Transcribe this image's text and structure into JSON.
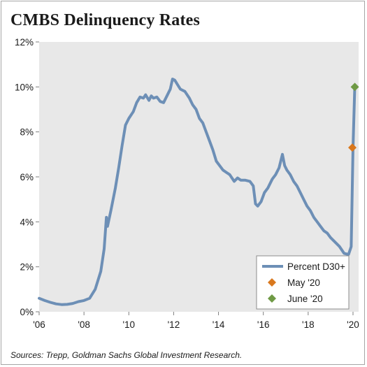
{
  "title": "CMBS Delinquency Rates",
  "source": "Sources: Trepp, Goldman Sachs Global Investment Research.",
  "colors": {
    "plot_background": "#e8e8e8",
    "line": "#6d8fb6",
    "may_marker": "#d9781e",
    "june_marker": "#6f9a45"
  },
  "chart_data": {
    "type": "line",
    "title": "CMBS Delinquency Rates",
    "xlabel": "",
    "ylabel": "",
    "xlim": [
      2006.0,
      2020.25
    ],
    "ylim": [
      0,
      12
    ],
    "x_ticks": [
      {
        "value": 2006,
        "label": "'06"
      },
      {
        "value": 2008,
        "label": "'08"
      },
      {
        "value": 2010,
        "label": "'10"
      },
      {
        "value": 2012,
        "label": "'12"
      },
      {
        "value": 2014,
        "label": "'14"
      },
      {
        "value": 2016,
        "label": "'16"
      },
      {
        "value": 2018,
        "label": "'18"
      },
      {
        "value": 2020,
        "label": "'20"
      }
    ],
    "y_ticks": [
      {
        "value": 0,
        "label": "0%"
      },
      {
        "value": 2,
        "label": "2%"
      },
      {
        "value": 4,
        "label": "4%"
      },
      {
        "value": 6,
        "label": "6%"
      },
      {
        "value": 8,
        "label": "8%"
      },
      {
        "value": 10,
        "label": "10%"
      },
      {
        "value": 12,
        "label": "12%"
      }
    ],
    "grid": false,
    "legend_position": "bottom-right",
    "series": [
      {
        "name": "Percent D30+",
        "kind": "line",
        "points": [
          [
            2006.0,
            0.6
          ],
          [
            2006.25,
            0.5
          ],
          [
            2006.5,
            0.42
          ],
          [
            2006.75,
            0.35
          ],
          [
            2007.0,
            0.32
          ],
          [
            2007.25,
            0.33
          ],
          [
            2007.5,
            0.37
          ],
          [
            2007.75,
            0.45
          ],
          [
            2008.0,
            0.5
          ],
          [
            2008.25,
            0.6
          ],
          [
            2008.5,
            1.0
          ],
          [
            2008.75,
            1.8
          ],
          [
            2008.9,
            2.8
          ],
          [
            2009.0,
            4.2
          ],
          [
            2009.05,
            3.8
          ],
          [
            2009.2,
            4.5
          ],
          [
            2009.4,
            5.5
          ],
          [
            2009.55,
            6.4
          ],
          [
            2009.7,
            7.4
          ],
          [
            2009.85,
            8.3
          ],
          [
            2010.0,
            8.6
          ],
          [
            2010.2,
            8.9
          ],
          [
            2010.35,
            9.3
          ],
          [
            2010.5,
            9.55
          ],
          [
            2010.65,
            9.5
          ],
          [
            2010.75,
            9.65
          ],
          [
            2010.9,
            9.4
          ],
          [
            2011.0,
            9.6
          ],
          [
            2011.1,
            9.5
          ],
          [
            2011.25,
            9.55
          ],
          [
            2011.4,
            9.35
          ],
          [
            2011.55,
            9.3
          ],
          [
            2011.7,
            9.6
          ],
          [
            2011.85,
            9.9
          ],
          [
            2011.95,
            10.35
          ],
          [
            2012.05,
            10.3
          ],
          [
            2012.3,
            9.9
          ],
          [
            2012.5,
            9.8
          ],
          [
            2012.7,
            9.5
          ],
          [
            2012.85,
            9.2
          ],
          [
            2013.0,
            9.0
          ],
          [
            2013.15,
            8.6
          ],
          [
            2013.3,
            8.4
          ],
          [
            2013.45,
            8.0
          ],
          [
            2013.6,
            7.6
          ],
          [
            2013.75,
            7.2
          ],
          [
            2013.9,
            6.7
          ],
          [
            2014.05,
            6.5
          ],
          [
            2014.2,
            6.3
          ],
          [
            2014.35,
            6.2
          ],
          [
            2014.5,
            6.1
          ],
          [
            2014.7,
            5.8
          ],
          [
            2014.85,
            5.95
          ],
          [
            2015.0,
            5.85
          ],
          [
            2015.2,
            5.85
          ],
          [
            2015.4,
            5.8
          ],
          [
            2015.55,
            5.6
          ],
          [
            2015.65,
            4.8
          ],
          [
            2015.75,
            4.7
          ],
          [
            2015.9,
            4.9
          ],
          [
            2016.05,
            5.3
          ],
          [
            2016.2,
            5.5
          ],
          [
            2016.4,
            5.9
          ],
          [
            2016.55,
            6.1
          ],
          [
            2016.7,
            6.4
          ],
          [
            2016.85,
            7.0
          ],
          [
            2016.95,
            6.5
          ],
          [
            2017.05,
            6.3
          ],
          [
            2017.2,
            6.1
          ],
          [
            2017.35,
            5.8
          ],
          [
            2017.5,
            5.6
          ],
          [
            2017.65,
            5.3
          ],
          [
            2017.8,
            5.0
          ],
          [
            2017.95,
            4.7
          ],
          [
            2018.1,
            4.5
          ],
          [
            2018.25,
            4.2
          ],
          [
            2018.4,
            4.0
          ],
          [
            2018.55,
            3.8
          ],
          [
            2018.7,
            3.6
          ],
          [
            2018.85,
            3.5
          ],
          [
            2019.0,
            3.3
          ],
          [
            2019.2,
            3.1
          ],
          [
            2019.4,
            2.9
          ],
          [
            2019.6,
            2.6
          ],
          [
            2019.8,
            2.55
          ],
          [
            2019.92,
            2.9
          ],
          [
            2020.0,
            7.3
          ],
          [
            2020.08,
            10.0
          ]
        ]
      },
      {
        "name": "May '20",
        "kind": "marker",
        "shape": "diamond",
        "points": [
          [
            2019.97,
            7.3
          ]
        ]
      },
      {
        "name": "June '20",
        "kind": "marker",
        "shape": "diamond",
        "points": [
          [
            2020.08,
            10.0
          ]
        ]
      }
    ]
  }
}
